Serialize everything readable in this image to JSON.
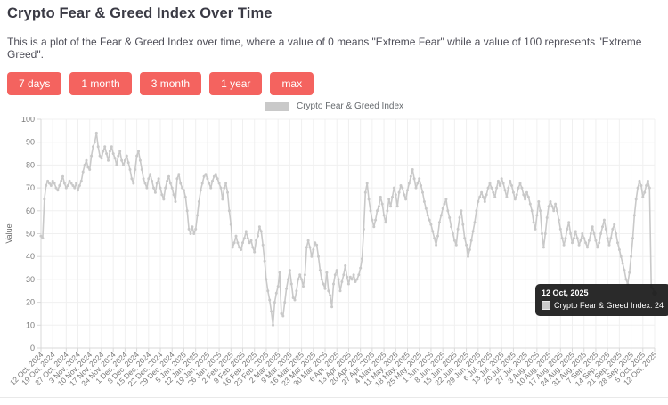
{
  "page": {
    "title": "Crypto Fear & Greed Index Over Time",
    "description": "This is a plot of the Fear & Greed Index over time, where a value of 0 means \"Extreme Fear\" while a value of 100 represents \"Extreme Greed\".",
    "range_buttons": [
      {
        "label": "7 days"
      },
      {
        "label": "1 month"
      },
      {
        "label": "3 month"
      },
      {
        "label": "1 year"
      },
      {
        "label": "max"
      }
    ],
    "button_color": "#f4635f"
  },
  "legend": {
    "label": "Crypto Fear & Greed Index",
    "swatch_color": "#c9c9c9"
  },
  "tooltip": {
    "date": "12 Oct, 2025",
    "series": "Crypto Fear & Greed Index",
    "value": 24,
    "text": "Crypto Fear & Greed Index: 24"
  },
  "chart_data": {
    "type": "line",
    "title": "Crypto Fear & Greed Index",
    "xlabel": "",
    "ylabel": "Value",
    "ylim": [
      0,
      100
    ],
    "grid": true,
    "legend_position": "top",
    "line_color": "#c9c9c9",
    "start_date": "12 Oct, 2024",
    "end_date": "12 Oct, 2025",
    "active_point": {
      "date": "12 Oct, 2025",
      "value": 24
    },
    "y_ticks": [
      0,
      10,
      20,
      30,
      40,
      50,
      60,
      70,
      80,
      90,
      100
    ],
    "x_ticks": [
      {
        "d": 0,
        "label": "12 Oct, 2024"
      },
      {
        "d": 7,
        "label": "19 Oct, 2024"
      },
      {
        "d": 15,
        "label": "27 Oct, 2024"
      },
      {
        "d": 22,
        "label": "3 Nov, 2024"
      },
      {
        "d": 29,
        "label": "10 Nov, 2024"
      },
      {
        "d": 36,
        "label": "17 Nov, 2024"
      },
      {
        "d": 43,
        "label": "24 Nov, 2024"
      },
      {
        "d": 50,
        "label": "1 Dec, 2024"
      },
      {
        "d": 57,
        "label": "8 Dec, 2024"
      },
      {
        "d": 64,
        "label": "15 Dec, 2024"
      },
      {
        "d": 71,
        "label": "22 Dec, 2024"
      },
      {
        "d": 78,
        "label": "29 Dec, 2024"
      },
      {
        "d": 85,
        "label": "5 Jan, 2025"
      },
      {
        "d": 92,
        "label": "12 Jan, 2025"
      },
      {
        "d": 99,
        "label": "19 Jan, 2025"
      },
      {
        "d": 106,
        "label": "26 Jan, 2025"
      },
      {
        "d": 113,
        "label": "2 Feb, 2025"
      },
      {
        "d": 120,
        "label": "9 Feb, 2025"
      },
      {
        "d": 127,
        "label": "16 Feb, 2025"
      },
      {
        "d": 134,
        "label": "23 Feb, 2025"
      },
      {
        "d": 141,
        "label": "2 Mar, 2025"
      },
      {
        "d": 148,
        "label": "9 Mar, 2025"
      },
      {
        "d": 155,
        "label": "16 Mar, 2025"
      },
      {
        "d": 162,
        "label": "23 Mar, 2025"
      },
      {
        "d": 169,
        "label": "30 Mar, 2025"
      },
      {
        "d": 176,
        "label": "6 Apr, 2025"
      },
      {
        "d": 183,
        "label": "13 Apr, 2025"
      },
      {
        "d": 190,
        "label": "20 Apr, 2025"
      },
      {
        "d": 197,
        "label": "27 Apr, 2025"
      },
      {
        "d": 204,
        "label": "4 May, 2025"
      },
      {
        "d": 211,
        "label": "11 May, 2025"
      },
      {
        "d": 218,
        "label": "18 May, 2025"
      },
      {
        "d": 225,
        "label": "25 May, 2025"
      },
      {
        "d": 232,
        "label": "1 Jun, 2025"
      },
      {
        "d": 239,
        "label": "8 Jun, 2025"
      },
      {
        "d": 246,
        "label": "15 Jun, 2025"
      },
      {
        "d": 253,
        "label": "22 Jun, 2025"
      },
      {
        "d": 260,
        "label": "29 Jun, 2025"
      },
      {
        "d": 267,
        "label": "6 Jul, 2025"
      },
      {
        "d": 274,
        "label": "13 Jul, 2025"
      },
      {
        "d": 281,
        "label": "20 Jul, 2025"
      },
      {
        "d": 288,
        "label": "27 Jul, 2025"
      },
      {
        "d": 295,
        "label": "3 Aug, 2025"
      },
      {
        "d": 302,
        "label": "10 Aug, 2025"
      },
      {
        "d": 309,
        "label": "17 Aug, 2025"
      },
      {
        "d": 316,
        "label": "24 Aug, 2025"
      },
      {
        "d": 323,
        "label": "31 Aug, 2025"
      },
      {
        "d": 330,
        "label": "7 Sep, 2025"
      },
      {
        "d": 337,
        "label": "14 Sep, 2025"
      },
      {
        "d": 344,
        "label": "21 Sep, 2025"
      },
      {
        "d": 351,
        "label": "28 Sep, 2025"
      },
      {
        "d": 358,
        "label": "5 Oct, 2025"
      },
      {
        "d": 365,
        "label": "12 Oct, 2025"
      }
    ],
    "series": [
      {
        "name": "Crypto Fear & Greed Index",
        "values": [
          49,
          48,
          65,
          71,
          73,
          72,
          71,
          73,
          72,
          70,
          69,
          71,
          73,
          75,
          72,
          70,
          71,
          73,
          72,
          71,
          70,
          72,
          69,
          71,
          73,
          77,
          80,
          82,
          79,
          78,
          84,
          88,
          90,
          94,
          88,
          84,
          83,
          86,
          88,
          85,
          82,
          86,
          88,
          85,
          83,
          80,
          84,
          86,
          82,
          80,
          82,
          84,
          81,
          78,
          74,
          72,
          78,
          84,
          86,
          82,
          78,
          74,
          72,
          70,
          74,
          76,
          73,
          70,
          68,
          72,
          74,
          70,
          67,
          65,
          70,
          73,
          75,
          72,
          70,
          67,
          64,
          74,
          76,
          72,
          70,
          69,
          66,
          60,
          52,
          50,
          53,
          50,
          52,
          58,
          64,
          69,
          72,
          75,
          76,
          74,
          72,
          70,
          73,
          75,
          76,
          74,
          72,
          70,
          65,
          70,
          72,
          68,
          60,
          54,
          44,
          46,
          49,
          46,
          44,
          43,
          46,
          48,
          51,
          48,
          46,
          47,
          44,
          42,
          47,
          49,
          53,
          51,
          45,
          38,
          30,
          25,
          21,
          16,
          10,
          20,
          24,
          27,
          33,
          15,
          14,
          20,
          26,
          30,
          34,
          28,
          22,
          21,
          25,
          30,
          32,
          30,
          27,
          32,
          44,
          47,
          44,
          40,
          43,
          46,
          45,
          40,
          34,
          30,
          28,
          26,
          33,
          25,
          23,
          18,
          28,
          32,
          34,
          30,
          25,
          29,
          32,
          36,
          31,
          28,
          31,
          30,
          32,
          29,
          30,
          32,
          35,
          39,
          52,
          68,
          72,
          65,
          60,
          56,
          53,
          56,
          60,
          62,
          66,
          63,
          58,
          55,
          60,
          65,
          62,
          66,
          70,
          67,
          62,
          68,
          71,
          70,
          67,
          65,
          69,
          72,
          75,
          78,
          74,
          70,
          72,
          74,
          71,
          68,
          64,
          61,
          58,
          56,
          54,
          51,
          48,
          45,
          49,
          55,
          58,
          61,
          63,
          65,
          60,
          57,
          53,
          50,
          47,
          45,
          52,
          57,
          60,
          54,
          48,
          45,
          40,
          43,
          47,
          51,
          55,
          60,
          64,
          66,
          68,
          66,
          64,
          67,
          70,
          72,
          70,
          68,
          66,
          70,
          73,
          71,
          74,
          72,
          69,
          66,
          70,
          73,
          71,
          68,
          65,
          67,
          70,
          72,
          70,
          67,
          65,
          68,
          66,
          63,
          60,
          55,
          52,
          58,
          64,
          60,
          50,
          44,
          50,
          57,
          62,
          64,
          62,
          60,
          63,
          60,
          56,
          52,
          48,
          45,
          48,
          52,
          55,
          50,
          46,
          48,
          51,
          48,
          45,
          47,
          50,
          48,
          46,
          44,
          47,
          50,
          53,
          50,
          47,
          44,
          46,
          50,
          53,
          56,
          52,
          48,
          45,
          48,
          52,
          54,
          50,
          46,
          43,
          40,
          37,
          34,
          30,
          28,
          33,
          40,
          48,
          58,
          65,
          70,
          73,
          71,
          66,
          68,
          71,
          73,
          70,
          27,
          26,
          24
        ]
      }
    ]
  }
}
